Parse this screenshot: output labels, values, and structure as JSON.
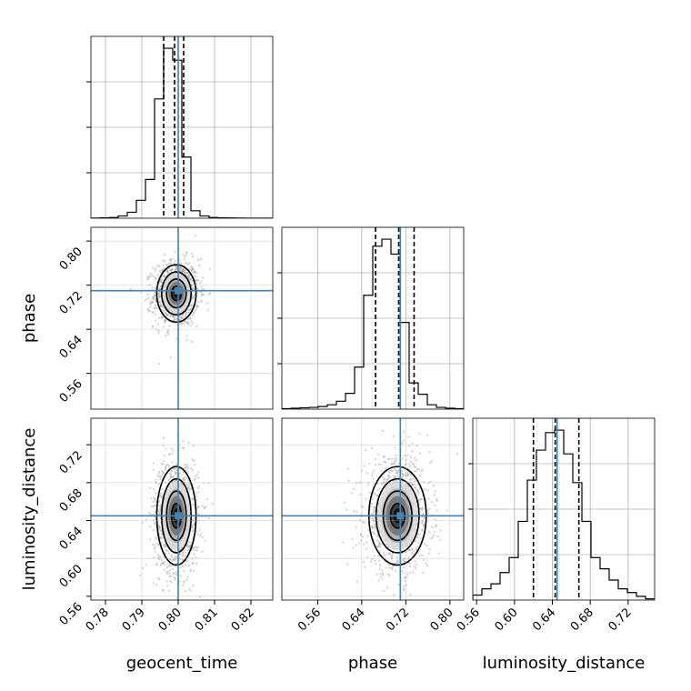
{
  "chart_data": {
    "type": "corner",
    "parameters": [
      "geocent_time",
      "phase",
      "luminosity_distance"
    ],
    "truth_color": "#4682b4",
    "truths": {
      "geocent_time": 0.8,
      "phase": 0.71,
      "luminosity_distance": 0.645
    },
    "quantile_lines": {
      "geocent_time": [
        0.796,
        0.799,
        0.8015
      ],
      "phase": [
        0.665,
        0.707,
        0.735
      ],
      "luminosity_distance": [
        0.62,
        0.643,
        0.668
      ]
    },
    "ranges": {
      "geocent_time": [
        0.776,
        0.826
      ],
      "phase": [
        0.495,
        0.825
      ],
      "luminosity_distance": [
        0.556,
        0.748
      ]
    },
    "ticks": {
      "geocent_time": [
        "0.78",
        "0.79",
        "0.80",
        "0.81",
        "0.82"
      ],
      "phase": [
        "0.56",
        "0.64",
        "0.72",
        "0.80"
      ],
      "luminosity_distance": [
        "0.56",
        "0.60",
        "0.64",
        "0.68",
        "0.72"
      ]
    },
    "histograms": {
      "geocent_time": {
        "bin_edges": [
          0.776,
          0.7785,
          0.781,
          0.7835,
          0.786,
          0.7885,
          0.791,
          0.7935,
          0.796,
          0.7985,
          0.801,
          0.8035,
          0.806,
          0.8085,
          0.811,
          0.8135,
          0.816,
          0.8185,
          0.821,
          0.8235,
          0.826
        ],
        "counts": [
          0.2,
          0.5,
          1,
          3,
          8,
          24,
          52,
          160,
          228,
          212,
          82,
          10,
          3,
          1,
          0.5,
          0.3,
          0.2,
          0.1,
          0.1,
          0.1
        ]
      },
      "phase": {
        "bin_edges": [
          0.495,
          0.5115,
          0.528,
          0.5445,
          0.561,
          0.5775,
          0.594,
          0.6105,
          0.627,
          0.6435,
          0.66,
          0.6765,
          0.693,
          0.7095,
          0.726,
          0.7425,
          0.759,
          0.7755,
          0.792,
          0.8085,
          0.825
        ],
        "counts": [
          0.5,
          1,
          1.5,
          2,
          3,
          5,
          9,
          18,
          48,
          130,
          186,
          194,
          177,
          99,
          30,
          17,
          5,
          2,
          1,
          0.5
        ]
      },
      "luminosity_distance": {
        "bin_edges": [
          0.556,
          0.5656,
          0.5752,
          0.5848,
          0.5944,
          0.604,
          0.6136,
          0.6232,
          0.6328,
          0.6424,
          0.652,
          0.6616,
          0.6712,
          0.6808,
          0.6904,
          0.7,
          0.7096,
          0.7192,
          0.7288,
          0.7384,
          0.748
        ],
        "counts": [
          4,
          9,
          13,
          22,
          34,
          63,
          96,
          120,
          134,
          136,
          117,
          94,
          63,
          34,
          25,
          16,
          9,
          6,
          3,
          1
        ]
      }
    },
    "contour_levels": [
      0.5,
      1.0,
      1.5,
      2.0
    ],
    "pairs": [
      {
        "x": "geocent_time",
        "y": "phase",
        "center": [
          0.7995,
          0.705
        ],
        "sigma": [
          0.0027,
          0.026
        ],
        "corr": 0.05
      },
      {
        "x": "geocent_time",
        "y": "luminosity_distance",
        "center": [
          0.7995,
          0.645
        ],
        "sigma": [
          0.0027,
          0.026
        ],
        "corr": 0.0
      },
      {
        "x": "phase",
        "y": "luminosity_distance",
        "center": [
          0.705,
          0.645
        ],
        "sigma": [
          0.026,
          0.026
        ],
        "corr": 0.0
      }
    ]
  }
}
